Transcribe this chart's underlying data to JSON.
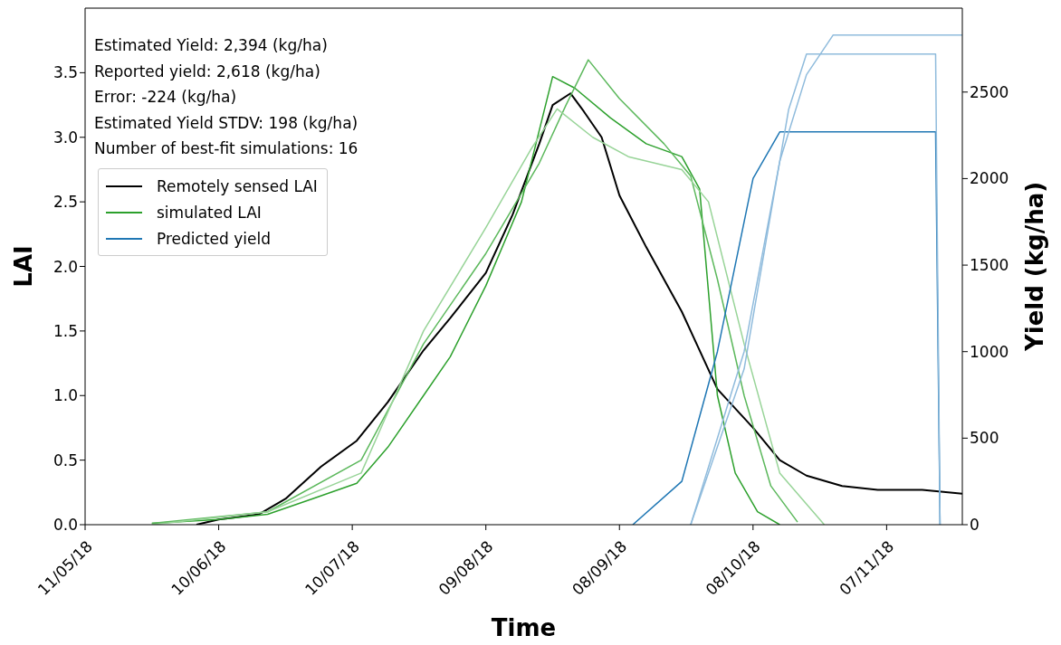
{
  "chart_data": {
    "type": "line",
    "xlabel": "Time",
    "ylabel": "LAI",
    "y2label": "Yield (kg/ha)",
    "annotations": [
      "Estimated Yield: 2,394 (kg/ha)",
      "Reported yield: 2,618 (kg/ha)",
      "Error: -224 (kg/ha)",
      "Estimated Yield STDV: 198 (kg/ha)",
      "Number of best-fit simulations: 16"
    ],
    "xlim": [
      "2018-05-11",
      "2018-11-24"
    ],
    "xticks": [
      {
        "value": "2018-05-11",
        "label": "11/05/18"
      },
      {
        "value": "2018-06-10",
        "label": "10/06/18"
      },
      {
        "value": "2018-07-10",
        "label": "10/07/18"
      },
      {
        "value": "2018-08-09",
        "label": "09/08/18"
      },
      {
        "value": "2018-09-08",
        "label": "08/09/18"
      },
      {
        "value": "2018-10-08",
        "label": "08/10/18"
      },
      {
        "value": "2018-11-07",
        "label": "07/11/18"
      }
    ],
    "ylim": [
      0,
      4.0
    ],
    "yticks": [
      {
        "value": 0,
        "label": "0.0"
      },
      {
        "value": 0.5,
        "label": "0.5"
      },
      {
        "value": 1,
        "label": "1.0"
      },
      {
        "value": 1.5,
        "label": "1.5"
      },
      {
        "value": 2,
        "label": "2.0"
      },
      {
        "value": 2.5,
        "label": "2.5"
      },
      {
        "value": 3,
        "label": "3.0"
      },
      {
        "value": 3.5,
        "label": "3.5"
      }
    ],
    "y2lim": [
      0,
      2985
    ],
    "y2ticks": [
      0,
      500,
      1000,
      1500,
      2000,
      2500
    ],
    "legend": "top left",
    "grid": false,
    "marker": "none",
    "line_style": "solid",
    "series": [
      {
        "name": "Remotely sensed LAI",
        "color": "#000000",
        "x": [
          "2018-06-05",
          "2018-06-10",
          "2018-06-19",
          "2018-06-25",
          "2018-07-03",
          "2018-07-11",
          "2018-07-18",
          "2018-07-26",
          "2018-08-01",
          "2018-08-09",
          "2018-08-15",
          "2018-08-21",
          "2018-08-24",
          "2018-08-28",
          "2018-08-31",
          "2018-09-04",
          "2018-09-08",
          "2018-09-14",
          "2018-09-22",
          "2018-09-30",
          "2018-10-08",
          "2018-10-14",
          "2018-10-20",
          "2018-10-28",
          "2018-11-05",
          "2018-11-15",
          "2018-11-24"
        ],
        "values": [
          0,
          0.04,
          0.08,
          0.2,
          0.45,
          0.65,
          0.95,
          1.35,
          1.6,
          1.95,
          2.4,
          2.95,
          3.25,
          3.34,
          3.2,
          3.0,
          2.55,
          2.15,
          1.65,
          1.05,
          0.75,
          0.5,
          0.38,
          0.3,
          0.27,
          0.27,
          0.24
        ]
      },
      {
        "name": "simulated LAI",
        "color": "#2ca02c",
        "x": [
          "2018-05-26",
          "2018-06-10",
          "2018-06-21",
          "2018-07-01",
          "2018-07-11",
          "2018-07-18",
          "2018-07-26",
          "2018-08-01",
          "2018-08-09",
          "2018-08-17",
          "2018-08-24",
          "2018-08-29",
          "2018-09-06",
          "2018-09-14",
          "2018-09-22",
          "2018-09-26",
          "2018-09-30",
          "2018-10-04",
          "2018-10-09",
          "2018-10-14"
        ],
        "values": [
          0.01,
          0.04,
          0.08,
          0.2,
          0.32,
          0.6,
          1.0,
          1.3,
          1.85,
          2.5,
          3.47,
          3.38,
          3.15,
          2.95,
          2.85,
          2.6,
          1.0,
          0.4,
          0.1,
          0
        ]
      },
      {
        "color": "#5cb85c",
        "x": [
          "2018-05-26",
          "2018-06-21",
          "2018-07-12",
          "2018-07-26",
          "2018-08-09",
          "2018-08-21",
          "2018-08-27",
          "2018-09-01",
          "2018-09-08",
          "2018-09-18",
          "2018-09-24",
          "2018-09-30",
          "2018-10-06",
          "2018-10-12",
          "2018-10-18"
        ],
        "values": [
          0.01,
          0.1,
          0.5,
          1.4,
          2.1,
          2.8,
          3.25,
          3.6,
          3.3,
          2.95,
          2.7,
          1.9,
          1.0,
          0.3,
          0.02
        ]
      },
      {
        "color": "#98d498",
        "x": [
          "2018-05-26",
          "2018-06-21",
          "2018-07-12",
          "2018-07-26",
          "2018-08-09",
          "2018-08-19",
          "2018-08-25",
          "2018-09-02",
          "2018-09-10",
          "2018-09-22",
          "2018-09-28",
          "2018-10-06",
          "2018-10-14",
          "2018-10-24"
        ],
        "values": [
          0,
          0.1,
          0.4,
          1.5,
          2.3,
          2.9,
          3.22,
          3.0,
          2.85,
          2.75,
          2.5,
          1.4,
          0.4,
          0
        ]
      },
      {
        "name": "Predicted yield",
        "color": "#1f77b4",
        "axis": "y2",
        "x": [
          "2018-09-11",
          "2018-09-22",
          "2018-09-30",
          "2018-10-08",
          "2018-10-14",
          "2018-11-18",
          "2018-11-19"
        ],
        "values": [
          0,
          250,
          1000,
          2000,
          2270,
          2270,
          0
        ]
      },
      {
        "color": "#8fbbdc",
        "axis": "y2",
        "x": [
          "2018-09-24",
          "2018-10-06",
          "2018-10-14",
          "2018-10-20",
          "2018-10-26",
          "2018-11-24"
        ],
        "values": [
          0,
          1000,
          2100,
          2600,
          2830,
          2830
        ]
      },
      {
        "color": "#8fbbdc",
        "axis": "y2",
        "x": [
          "2018-09-24",
          "2018-10-06",
          "2018-10-16",
          "2018-10-20",
          "2018-11-18",
          "2018-11-19"
        ],
        "values": [
          0,
          900,
          2400,
          2720,
          2720,
          0
        ]
      }
    ]
  }
}
